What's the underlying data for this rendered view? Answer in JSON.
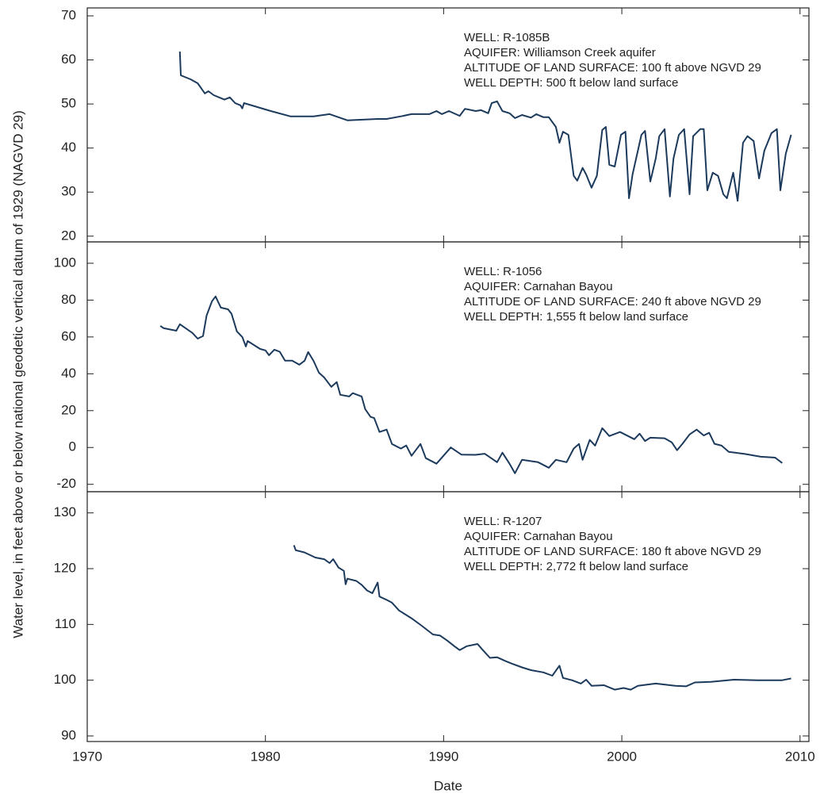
{
  "ylabel": "Water level, in feet above or below national geodetic vertical datum of 1929 (NAGVD 29)",
  "xlabel": "Date",
  "chart_data": [
    {
      "type": "line",
      "annotations": [
        "WELL: R-1085B",
        "AQUIFER: Williamson Creek aquifer",
        "ALTITUDE OF LAND SURFACE: 100 ft above NGVD 29",
        "WELL DEPTH: 500 ft below land surface"
      ],
      "xlim": [
        1970,
        2010.5
      ],
      "xticks": [
        1970,
        1980,
        1990,
        2000,
        2010
      ],
      "ylim": [
        18.7,
        71.8
      ],
      "yticks": [
        20,
        30,
        40,
        50,
        60,
        70
      ],
      "series": [
        {
          "color": "#1c3a5c",
          "x": [
            1975.2,
            1975.25,
            1975.8,
            1976.2,
            1976.6,
            1976.8,
            1977.1,
            1977.7,
            1978.0,
            1978.3,
            1978.6,
            1978.7,
            1978.8,
            1980.3,
            1981.4,
            1982.7,
            1983.6,
            1984.6,
            1986.3,
            1986.8,
            1987.6,
            1988.2,
            1989.2,
            1989.6,
            1989.9,
            1990.3,
            1990.9,
            1991.2,
            1991.8,
            1992.1,
            1992.5,
            1992.7,
            1993.0,
            1993.3,
            1993.7,
            1994.0,
            1994.4,
            1994.9,
            1995.2,
            1995.6,
            1995.9,
            1996.3,
            1996.5,
            1996.7,
            1997.0,
            1997.3,
            1997.5,
            1997.8,
            1998.0,
            1998.3,
            1998.6,
            1998.9,
            1999.1,
            1999.3,
            1999.6,
            1999.95,
            2000.2,
            2000.4,
            2000.6,
            2001.1,
            2001.3,
            2001.6,
            2001.9,
            2002.1,
            2002.4,
            2002.7,
            2002.9,
            2003.2,
            2003.5,
            2003.8,
            2004.0,
            2004.4,
            2004.6,
            2004.8,
            2005.1,
            2005.4,
            2005.7,
            2005.9,
            2006.25,
            2006.5,
            2006.8,
            2007.05,
            2007.4,
            2007.7,
            2008.0,
            2008.4,
            2008.7,
            2008.9,
            2009.2,
            2009.5
          ],
          "values": [
            61.9,
            56.5,
            55.6,
            54.7,
            52.4,
            52.9,
            52,
            51,
            51.5,
            50.2,
            49.7,
            49,
            50.2,
            48.4,
            47.2,
            47.2,
            47.7,
            46.3,
            46.6,
            46.6,
            47.2,
            47.7,
            47.7,
            48.4,
            47.7,
            48.4,
            47.3,
            48.9,
            48.4,
            48.6,
            47.9,
            50.2,
            50.6,
            48.4,
            47.9,
            46.8,
            47.5,
            46.9,
            47.7,
            47,
            47,
            44.8,
            41.2,
            43.7,
            43,
            33.7,
            32.6,
            35.5,
            34,
            31,
            33.7,
            44.1,
            44.8,
            36.2,
            35.8,
            43,
            43.7,
            28.6,
            34,
            43,
            43.9,
            32.4,
            37.6,
            42.7,
            44.3,
            29,
            37.6,
            43,
            44.3,
            29.5,
            42.7,
            44.3,
            44.3,
            30.4,
            34.4,
            33.7,
            29.5,
            28.6,
            34.4,
            28,
            41.2,
            42.7,
            41.6,
            33.1,
            39.4,
            43.4,
            44.3,
            30.4,
            38.7,
            43
          ]
        }
      ]
    },
    {
      "type": "line",
      "annotations": [
        "WELL: R-1056",
        "AQUIFER: Carnahan Bayou",
        "ALTITUDE OF LAND SURFACE: 240 ft above NGVD 29",
        "WELL DEPTH: 1,555 ft below land surface"
      ],
      "xlim": [
        1970,
        2010.5
      ],
      "xticks": [
        1970,
        1980,
        1990,
        2000,
        2010
      ],
      "ylim": [
        -24,
        111.6
      ],
      "yticks": [
        -20,
        0,
        20,
        40,
        60,
        80,
        100
      ],
      "series": [
        {
          "color": "#1c3a5c",
          "x": [
            1974.1,
            1974.3,
            1975.0,
            1975.2,
            1975.9,
            1976.2,
            1976.5,
            1976.7,
            1977.0,
            1977.2,
            1977.5,
            1977.9,
            1978.1,
            1978.4,
            1978.7,
            1978.9,
            1979.0,
            1979.7,
            1980.0,
            1980.2,
            1980.5,
            1980.8,
            1981.1,
            1981.5,
            1981.9,
            1982.2,
            1982.4,
            1982.7,
            1983.0,
            1983.3,
            1983.7,
            1984.0,
            1984.2,
            1984.7,
            1984.9,
            1985.4,
            1985.6,
            1985.9,
            1986.1,
            1986.4,
            1986.8,
            1987.1,
            1987.6,
            1987.9,
            1988.2,
            1988.7,
            1989.0,
            1989.6,
            1990.4,
            1991.0,
            1991.8,
            1992.3,
            1993.0,
            1993.3,
            1993.7,
            1994.0,
            1994.4,
            1995.3,
            1995.9,
            1996.3,
            1996.9,
            1997.3,
            1997.6,
            1997.8,
            1998.2,
            1998.5,
            1998.9,
            1999.3,
            1999.9,
            2000.7,
            2001.0,
            2001.3,
            2001.6,
            2002.4,
            2002.8,
            2003.1,
            2003.4,
            2003.8,
            2004.2,
            2004.6,
            2004.9,
            2005.2,
            2005.6,
            2006.0,
            2006.9,
            2007.8,
            2008.6,
            2009.0
          ],
          "values": [
            66,
            64.7,
            63.4,
            66.9,
            62.2,
            59.1,
            60.5,
            71.6,
            79.4,
            82,
            75.9,
            75,
            72.5,
            63,
            60,
            54.8,
            57.8,
            53.5,
            52.7,
            50.1,
            53.1,
            52,
            47.1,
            47.1,
            44.9,
            47.1,
            51.8,
            47,
            40.6,
            38,
            32.9,
            35.5,
            28.6,
            27.7,
            29.5,
            27.7,
            20.8,
            16.6,
            16,
            8.4,
            9.7,
            1.9,
            -0.6,
            1.1,
            -4.5,
            1.9,
            -5.8,
            -8.8,
            0,
            -3.9,
            -4,
            -3.4,
            -8,
            -2.8,
            -8.8,
            -14,
            -6.7,
            -8,
            -11,
            -6.7,
            -8,
            -0.6,
            1.9,
            -6.7,
            4.1,
            1,
            10.5,
            6.2,
            8.4,
            4.5,
            7.5,
            3.5,
            5.3,
            5,
            2.8,
            -1.5,
            2,
            7.1,
            9.7,
            6.5,
            8,
            2,
            1,
            -2.4,
            -3.5,
            -5,
            -5.5,
            -8.4
          ]
        }
      ]
    },
    {
      "type": "line",
      "annotations": [
        "WELL: R-1207",
        "AQUIFER: Carnahan Bayou",
        "ALTITUDE OF LAND SURFACE: 180 ft above NGVD 29",
        "WELL DEPTH: 2,772 ft below land surface"
      ],
      "xlim": [
        1970,
        2010.5
      ],
      "xticks": [
        1970,
        1980,
        1990,
        2000,
        2010
      ],
      "ylim": [
        89,
        133.8
      ],
      "yticks": [
        90,
        100,
        110,
        120,
        130
      ],
      "series": [
        {
          "color": "#1c3a5c",
          "x": [
            1981.6,
            1981.7,
            1982.2,
            1982.8,
            1983.3,
            1983.6,
            1983.8,
            1984.1,
            1984.4,
            1984.5,
            1984.6,
            1985.1,
            1985.4,
            1985.7,
            1986.0,
            1986.3,
            1986.4,
            1986.8,
            1987.1,
            1987.5,
            1988.2,
            1988.8,
            1989.4,
            1989.8,
            1990.2,
            1990.6,
            1990.9,
            1991.3,
            1991.9,
            1992.2,
            1992.6,
            1993.0,
            1993.5,
            1993.8,
            1994.4,
            1994.9,
            1995.6,
            1996.1,
            1996.5,
            1996.7,
            1997.2,
            1997.7,
            1998.0,
            1998.3,
            1999.0,
            1999.6,
            2000.1,
            2000.5,
            2000.9,
            2001.9,
            2003.0,
            2003.6,
            2004.1,
            2005.0,
            2006.3,
            2007.6,
            2009.0,
            2009.5
          ],
          "values": [
            124.2,
            123.3,
            122.9,
            122,
            121.7,
            121,
            121.7,
            120.2,
            119.6,
            117.2,
            118.2,
            117.8,
            117.1,
            116.1,
            115.6,
            117.5,
            115,
            114.4,
            113.9,
            112.5,
            111.1,
            109.7,
            108.2,
            108,
            107.1,
            106.1,
            105.4,
            106.1,
            106.5,
            105.4,
            104,
            104.1,
            103.4,
            103,
            102.3,
            101.8,
            101.4,
            100.8,
            102.6,
            100.4,
            100,
            99.4,
            100.1,
            99,
            99.1,
            98.3,
            98.6,
            98.3,
            99,
            99.4,
            99,
            98.9,
            99.6,
            99.7,
            100.1,
            100,
            100,
            100.3
          ]
        }
      ]
    }
  ]
}
